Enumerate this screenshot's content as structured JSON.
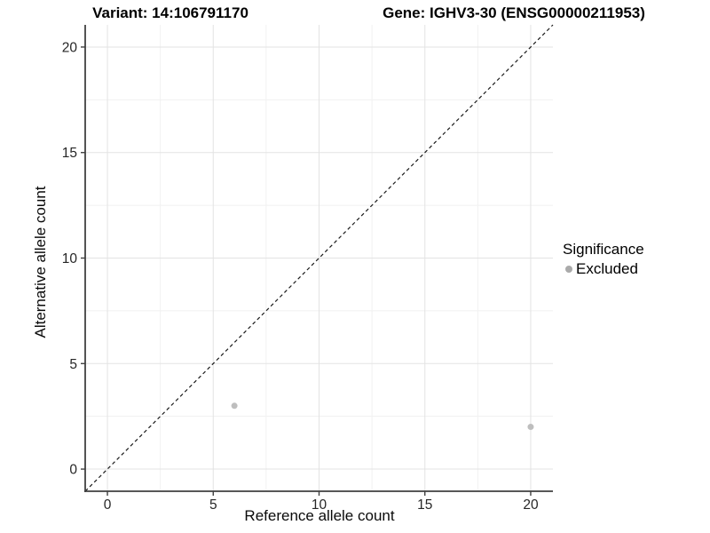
{
  "header": {
    "variant_title": "Variant: 14:106791170",
    "gene_title": "Gene: IGHV3-30 (ENSG00000211953)"
  },
  "legend": {
    "title": "Significance",
    "items": [
      {
        "label": "Excluded",
        "color": "#aaaaaa"
      }
    ]
  },
  "chart_data": {
    "type": "scatter",
    "title_left": "Variant: 14:106791170",
    "title_right": "Gene: IGHV3-30 (ENSG00000211953)",
    "xlabel": "Reference allele count",
    "ylabel": "Alternative allele count",
    "xlim": [
      -1.05,
      21.05
    ],
    "ylim": [
      -1.05,
      21.05
    ],
    "xticks": [
      0,
      5,
      10,
      15,
      20
    ],
    "yticks": [
      0,
      5,
      10,
      15,
      20
    ],
    "xminor": [
      2.5,
      7.5,
      12.5,
      17.5
    ],
    "yminor": [
      2.5,
      7.5,
      12.5,
      17.5
    ],
    "grid": "major and minor, light gray, on white panel",
    "legend_position": "right",
    "series": [
      {
        "name": "Excluded",
        "color": "#bebebe",
        "points": [
          {
            "x": 6,
            "y": 3
          },
          {
            "x": 20,
            "y": 2
          }
        ]
      }
    ],
    "identity_line": {
      "slope": 1,
      "intercept": 0,
      "style": "dashed",
      "color": "#1a1a1a"
    },
    "colors": {
      "grid_major": "#e3e3e3",
      "grid_minor": "#f1f1f1",
      "axis_line": "#404040",
      "tick_label": "#262626"
    }
  }
}
